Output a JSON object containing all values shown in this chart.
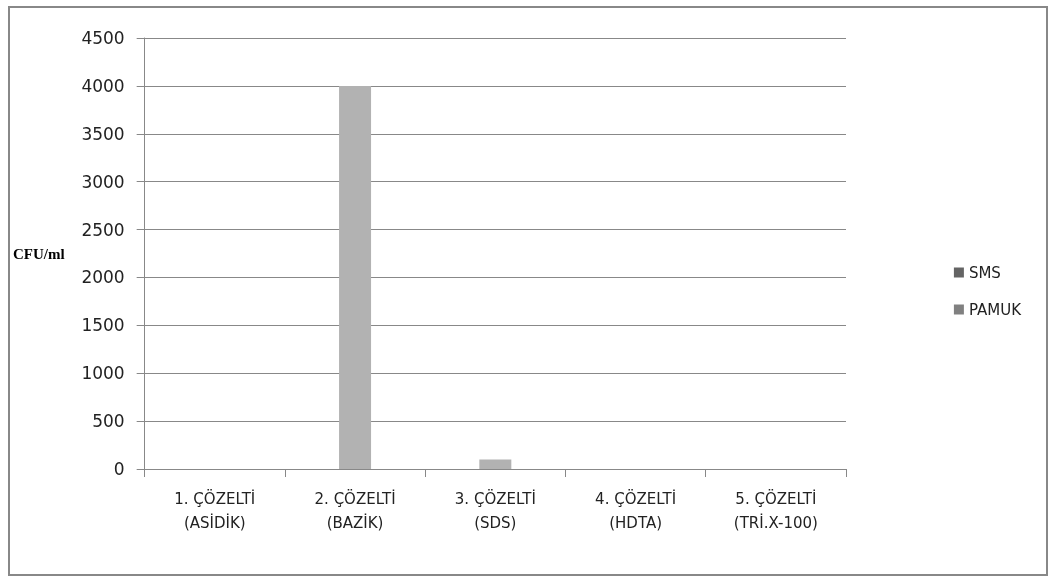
{
  "chart_data": {
    "type": "bar",
    "ylabel": "CFU/ml",
    "categories": [
      "1. ÇÖZELTİ\n(ASİDİK)",
      "2. ÇÖZELTİ\n(BAZİK)",
      "3. ÇÖZELTİ\n(SDS)",
      "4. ÇÖZELTİ\n(HDTA)",
      "5. ÇÖZELTİ\n(TRİ.X-100)"
    ],
    "series": [
      {
        "name": "SMS",
        "color": "#646464",
        "values": [
          0,
          0,
          0,
          0,
          0
        ]
      },
      {
        "color": "#b2b2b2",
        "values": [
          0,
          4000,
          100,
          0,
          0
        ]
      },
      {
        "name": "PAMUK",
        "color": "#808080",
        "values": [
          0,
          0,
          0,
          0,
          0
        ]
      }
    ],
    "ylim": [
      0,
      4500
    ],
    "yticks": [
      0,
      500,
      1000,
      1500,
      2000,
      2500,
      3000,
      3500,
      4000,
      4500
    ],
    "grid": "y",
    "legend": "right"
  }
}
